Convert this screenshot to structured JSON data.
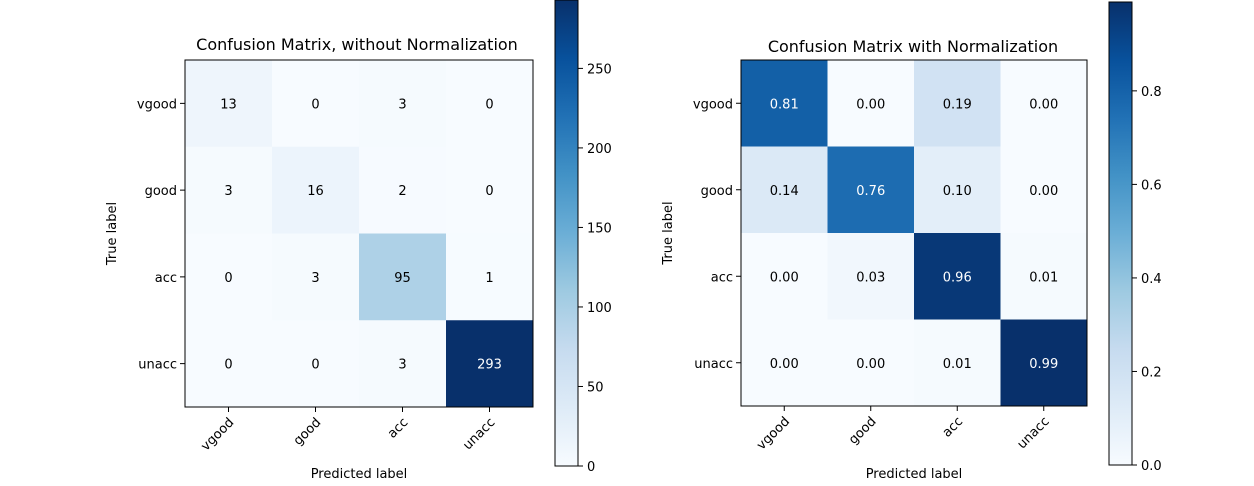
{
  "chart_data": [
    {
      "type": "heatmap",
      "title": "Confusion Matrix, without Normalization",
      "xlabel": "Predicted label",
      "ylabel": "True label",
      "x_categories": [
        "vgood",
        "good",
        "acc",
        "unacc"
      ],
      "y_categories": [
        "vgood",
        "good",
        "acc",
        "unacc"
      ],
      "values": [
        [
          13,
          0,
          3,
          0
        ],
        [
          3,
          16,
          2,
          0
        ],
        [
          0,
          3,
          95,
          1
        ],
        [
          0,
          0,
          3,
          293
        ]
      ],
      "cell_labels": [
        [
          "13",
          "0",
          "3",
          "0"
        ],
        [
          "3",
          "16",
          "2",
          "0"
        ],
        [
          "0",
          "3",
          "95",
          "1"
        ],
        [
          "0",
          "0",
          "3",
          "293"
        ]
      ],
      "colormap": "Blues",
      "color_range": [
        0,
        293
      ],
      "colorbar_ticks": [
        0,
        50,
        100,
        150,
        200,
        250
      ],
      "colorbar_tick_labels": [
        "0",
        "50",
        "100",
        "150",
        "200",
        "250"
      ],
      "grid": false
    },
    {
      "type": "heatmap",
      "title": "Confusion Matrix with Normalization",
      "xlabel": "Predicted label",
      "ylabel": "True label",
      "x_categories": [
        "vgood",
        "good",
        "acc",
        "unacc"
      ],
      "y_categories": [
        "vgood",
        "good",
        "acc",
        "unacc"
      ],
      "values": [
        [
          0.81,
          0.0,
          0.19,
          0.0
        ],
        [
          0.14,
          0.76,
          0.1,
          0.0
        ],
        [
          0.0,
          0.03,
          0.96,
          0.01
        ],
        [
          0.0,
          0.0,
          0.01,
          0.99
        ]
      ],
      "cell_labels": [
        [
          "0.81",
          "0.00",
          "0.19",
          "0.00"
        ],
        [
          "0.14",
          "0.76",
          "0.10",
          "0.00"
        ],
        [
          "0.00",
          "0.03",
          "0.96",
          "0.01"
        ],
        [
          "0.00",
          "0.00",
          "0.01",
          "0.99"
        ]
      ],
      "colormap": "Blues",
      "color_range": [
        0,
        0.99
      ],
      "colorbar_ticks": [
        0.0,
        0.2,
        0.4,
        0.6,
        0.8
      ],
      "colorbar_tick_labels": [
        "0.0",
        "0.2",
        "0.4",
        "0.6",
        "0.8"
      ],
      "grid": false
    }
  ]
}
